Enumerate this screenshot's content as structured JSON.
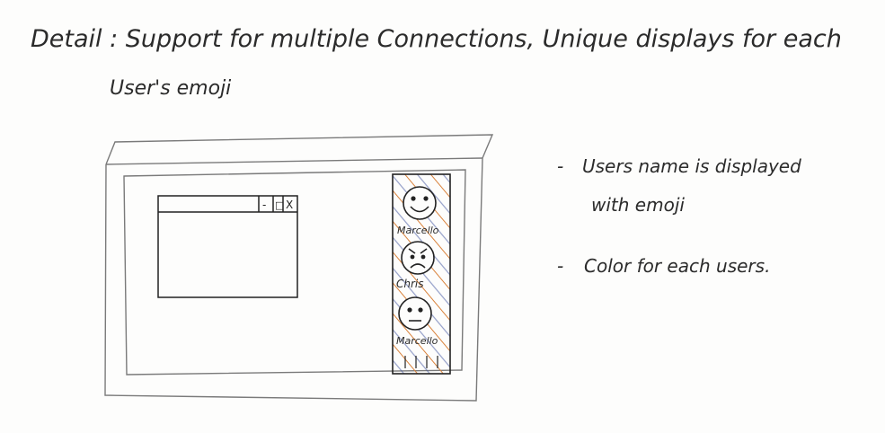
{
  "header": {
    "line1": "Detail : Support for multiple Connections, Unique displays for each",
    "line2": "User's emoji"
  },
  "window_controls": {
    "minimize": "-",
    "maximize": "□",
    "close": "X"
  },
  "users": [
    {
      "name": "Marcello",
      "emoji": "smiling-face-icon"
    },
    {
      "name": "Chris",
      "emoji": "angry-face-icon"
    },
    {
      "name": "Marcello",
      "emoji": "neutral-face-icon"
    }
  ],
  "notes": [
    {
      "bullet": "-",
      "line1": "Users name is displayed",
      "line2": "with emoji"
    },
    {
      "bullet": "-",
      "line1": "Color for each users.",
      "line2": ""
    }
  ],
  "colors": {
    "ink": "#2b2b2b",
    "stripe_orange": "#d9823b",
    "stripe_blue": "#3b4f9c"
  }
}
